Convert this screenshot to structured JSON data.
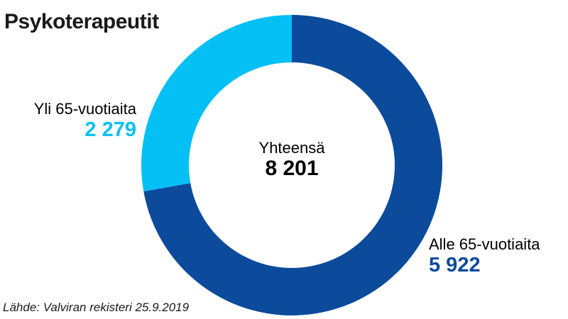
{
  "title": "Psykoterapeutit",
  "chart_data": {
    "type": "pie",
    "donut": true,
    "categories": [
      "Alle 65-vuotiaita",
      "Yli 65-vuotiaita"
    ],
    "values": [
      5922,
      2279
    ],
    "value_labels": [
      "5 922",
      "2 279"
    ],
    "colors": [
      "#0c4a9c",
      "#05c0f5"
    ],
    "total_label": "Yhteensä",
    "total_value": "8 201"
  },
  "source": "Lähde: Valviran rekisteri 25.9.2019"
}
